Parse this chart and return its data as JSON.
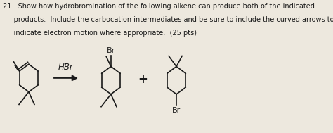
{
  "title_line1": "21.  Show how hydrobromination of the following alkene can produce both of the indicated",
  "title_line2": "     products.  Include the carbocation intermediates and be sure to include the curved arrows to",
  "title_line3": "     indicate electron motion where appropriate.  (25 pts)",
  "bg_color": "#ede8de",
  "text_color": "#1a1a1a",
  "font_size_text": 7.0,
  "font_size_label": 8.0,
  "reagent_label": "HBr",
  "plus_sign": "+",
  "br_label_top": "Br",
  "br_label_bottom": "Br",
  "fig_width": 4.74,
  "fig_height": 1.89,
  "lw": 1.2
}
